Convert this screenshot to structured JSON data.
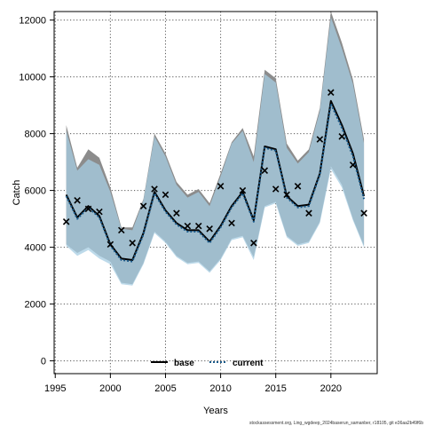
{
  "chart_data": {
    "type": "line",
    "title": "",
    "xlabel": "Years",
    "ylabel": "Catch",
    "xlim": [
      1994.9,
      2024.2
    ],
    "ylim": [
      -450,
      12300
    ],
    "xticks": [
      1995,
      2000,
      2005,
      2010,
      2015,
      2020
    ],
    "yticks": [
      0,
      2000,
      4000,
      6000,
      8000,
      10000,
      12000
    ],
    "grid": true,
    "legend_position": "bottom-center",
    "x": [
      1996,
      1997,
      1998,
      1999,
      2000,
      2001,
      2002,
      2003,
      2004,
      2005,
      2006,
      2007,
      2008,
      2009,
      2010,
      2011,
      2012,
      2013,
      2014,
      2015,
      2016,
      2017,
      2018,
      2019,
      2020,
      2021,
      2022,
      2023
    ],
    "series": [
      {
        "name": "base",
        "color": "#000000",
        "band_color": "#8c8c8c",
        "values": [
          5850,
          5050,
          5450,
          5100,
          4100,
          3600,
          3550,
          4500,
          5950,
          5300,
          4850,
          4600,
          4600,
          4200,
          4750,
          5450,
          5950,
          4950,
          7550,
          7450,
          5800,
          5450,
          5500,
          6600,
          9150,
          8300,
          7300,
          5800
        ],
        "upper": [
          8300,
          6800,
          7450,
          7150,
          6100,
          4700,
          4700,
          5700,
          8000,
          7300,
          6300,
          5850,
          6050,
          5550,
          6600,
          7700,
          8200,
          7200,
          10250,
          9950,
          7650,
          7050,
          7450,
          8900,
          12300,
          11200,
          9900,
          7800
        ],
        "lower": [
          4100,
          3800,
          4000,
          3700,
          3500,
          2750,
          2700,
          3450,
          4550,
          4200,
          3700,
          3450,
          3500,
          3150,
          3600,
          4300,
          4400,
          3650,
          5450,
          5600,
          4400,
          4100,
          4200,
          4900,
          6850,
          6200,
          5000,
          4050
        ]
      },
      {
        "name": "current",
        "color": "#1a5a8a",
        "band_color": "#a7cde3",
        "values": [
          5800,
          5000,
          5400,
          5050,
          4050,
          3550,
          3500,
          4450,
          5900,
          5250,
          4800,
          4550,
          4550,
          4150,
          4700,
          5400,
          5900,
          4900,
          7500,
          7400,
          5750,
          5400,
          5450,
          6550,
          9050,
          8200,
          7200,
          5700
        ],
        "upper": [
          8100,
          6700,
          7100,
          6900,
          5950,
          4650,
          4600,
          5650,
          7900,
          7200,
          6200,
          5750,
          5950,
          5450,
          6500,
          7650,
          8100,
          7000,
          10100,
          9800,
          7500,
          6950,
          7350,
          8800,
          12100,
          11000,
          9750,
          7650
        ],
        "lower": [
          4050,
          3700,
          3900,
          3600,
          3400,
          2700,
          2650,
          3400,
          4500,
          4150,
          3650,
          3400,
          3450,
          3100,
          3550,
          4250,
          4350,
          3550,
          5400,
          5550,
          4350,
          4050,
          4150,
          4850,
          6750,
          6100,
          4950,
          4000
        ]
      }
    ],
    "observed": {
      "marker": "x",
      "x": [
        1996,
        1997,
        1998,
        1999,
        2000,
        2001,
        2002,
        2003,
        2004,
        2005,
        2006,
        2007,
        2008,
        2009,
        2010,
        2011,
        2012,
        2013,
        2014,
        2015,
        2016,
        2017,
        2018,
        2019,
        2020,
        2021,
        2022,
        2023
      ],
      "y": [
        4900,
        5650,
        5350,
        5250,
        4100,
        4600,
        4150,
        5450,
        6050,
        5850,
        5200,
        4750,
        4750,
        4650,
        6150,
        4850,
        6000,
        4150,
        6700,
        6050,
        5850,
        6150,
        5200,
        7800,
        9450,
        7900,
        6900,
        5200
      ]
    },
    "footnote": "stockassessment.org, Ling_wgdeep_2024baserun_samanber, r18105, git e36aa2b49f6b"
  }
}
